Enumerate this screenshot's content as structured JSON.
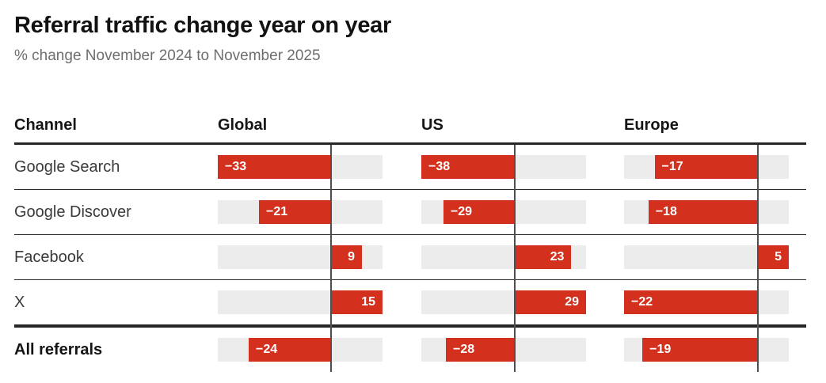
{
  "title": "Referral traffic change year on year",
  "subtitle": "% change November 2024 to November 2025",
  "table": {
    "channel_header": "Channel"
  },
  "chart_data": {
    "type": "bar",
    "orientation": "horizontal",
    "title": "Referral traffic change year on year",
    "subtitle": "% change November 2024 to November 2025",
    "unit": "% change year on year",
    "categories": [
      "Google Search",
      "Google Discover",
      "Facebook",
      "X",
      "All referrals"
    ],
    "series": [
      {
        "name": "Global",
        "values": [
          -33,
          -21,
          9,
          15,
          -24
        ],
        "axis_range": [
          -33,
          15
        ]
      },
      {
        "name": "US",
        "values": [
          -38,
          -29,
          23,
          29,
          -28
        ],
        "axis_range": [
          -38,
          29
        ]
      },
      {
        "name": "Europe",
        "values": [
          -17,
          -18,
          5,
          -22,
          -19
        ],
        "axis_range": [
          -22,
          5
        ]
      }
    ],
    "value_labels_shown": true,
    "gridlines": "zero-axis-only",
    "legend": "none"
  },
  "colors": {
    "bar_red": "#d4301e",
    "track_gray": "#ececec",
    "rule_dark": "#262626",
    "separator": "#2b2b2b",
    "axis_line": "#4f4f4f",
    "title_text": "#121212",
    "subtitle_text": "#6e6e6e",
    "label_text": "#3a3a3a",
    "bar_label_text": "#ffffff"
  }
}
